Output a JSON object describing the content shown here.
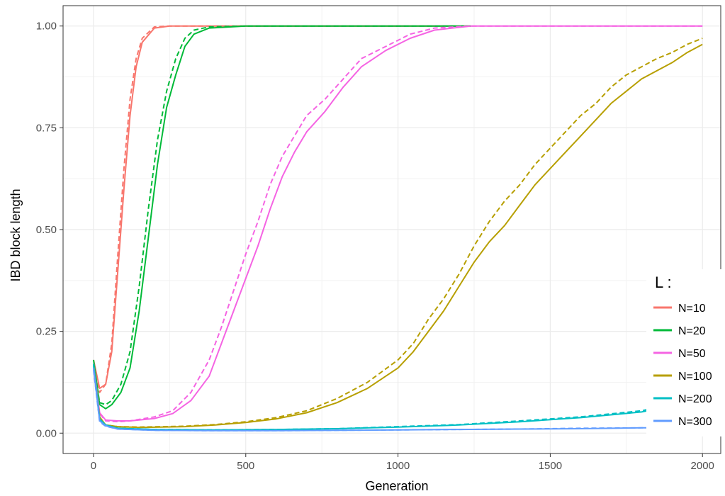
{
  "chart_data": {
    "type": "line",
    "xlabel": "Generation",
    "ylabel": "IBD block length",
    "xlim": [
      -100,
      2060
    ],
    "ylim": [
      -0.05,
      1.05
    ],
    "x_ticks": [
      0,
      500,
      1000,
      1500,
      2000
    ],
    "x_tick_labels": [
      "0",
      "500",
      "1000",
      "1500",
      "2000"
    ],
    "y_ticks": [
      0.0,
      0.25,
      0.5,
      0.75,
      1.0
    ],
    "y_tick_labels": [
      "0.00",
      "0.25",
      "0.50",
      "0.75",
      "1.00"
    ],
    "grid": true,
    "legend": {
      "title": "L :",
      "placement": "right",
      "entries": [
        "N=10",
        "N=20",
        "N=50",
        "N=100",
        "N=200",
        "N=300"
      ]
    },
    "line_styles": [
      "solid",
      "dashed"
    ],
    "series": [
      {
        "name": "N=10",
        "color": "#F8766D",
        "solid": [
          [
            0,
            0.18
          ],
          [
            20,
            0.11
          ],
          [
            40,
            0.12
          ],
          [
            60,
            0.2
          ],
          [
            80,
            0.4
          ],
          [
            100,
            0.6
          ],
          [
            120,
            0.78
          ],
          [
            140,
            0.9
          ],
          [
            160,
            0.96
          ],
          [
            200,
            0.995
          ],
          [
            250,
            1.0
          ],
          [
            1240,
            1.0
          ]
        ],
        "dashed": [
          [
            0,
            0.16
          ],
          [
            20,
            0.1
          ],
          [
            40,
            0.12
          ],
          [
            60,
            0.22
          ],
          [
            80,
            0.44
          ],
          [
            100,
            0.65
          ],
          [
            120,
            0.82
          ],
          [
            140,
            0.92
          ],
          [
            160,
            0.97
          ],
          [
            200,
            0.998
          ],
          [
            250,
            1.0
          ],
          [
            1240,
            1.0
          ]
        ]
      },
      {
        "name": "N=20",
        "color": "#00BA38",
        "solid": [
          [
            0,
            0.18
          ],
          [
            20,
            0.07
          ],
          [
            40,
            0.06
          ],
          [
            60,
            0.07
          ],
          [
            90,
            0.1
          ],
          [
            120,
            0.16
          ],
          [
            150,
            0.3
          ],
          [
            180,
            0.48
          ],
          [
            210,
            0.66
          ],
          [
            240,
            0.8
          ],
          [
            270,
            0.88
          ],
          [
            300,
            0.95
          ],
          [
            330,
            0.98
          ],
          [
            380,
            0.995
          ],
          [
            500,
            1.0
          ],
          [
            1240,
            1.0
          ]
        ],
        "dashed": [
          [
            0,
            0.17
          ],
          [
            20,
            0.075
          ],
          [
            40,
            0.07
          ],
          [
            60,
            0.08
          ],
          [
            90,
            0.12
          ],
          [
            120,
            0.2
          ],
          [
            150,
            0.36
          ],
          [
            180,
            0.55
          ],
          [
            210,
            0.72
          ],
          [
            240,
            0.84
          ],
          [
            270,
            0.92
          ],
          [
            300,
            0.97
          ],
          [
            330,
            0.99
          ],
          [
            380,
            0.998
          ],
          [
            500,
            1.0
          ],
          [
            1240,
            1.0
          ]
        ]
      },
      {
        "name": "N=50",
        "color": "#F564E3",
        "solid": [
          [
            0,
            0.17
          ],
          [
            20,
            0.05
          ],
          [
            40,
            0.032
          ],
          [
            80,
            0.03
          ],
          [
            120,
            0.03
          ],
          [
            200,
            0.036
          ],
          [
            260,
            0.048
          ],
          [
            320,
            0.08
          ],
          [
            380,
            0.14
          ],
          [
            420,
            0.22
          ],
          [
            460,
            0.3
          ],
          [
            500,
            0.38
          ],
          [
            540,
            0.46
          ],
          [
            580,
            0.55
          ],
          [
            620,
            0.63
          ],
          [
            660,
            0.69
          ],
          [
            700,
            0.74
          ],
          [
            760,
            0.79
          ],
          [
            820,
            0.85
          ],
          [
            880,
            0.9
          ],
          [
            960,
            0.94
          ],
          [
            1040,
            0.97
          ],
          [
            1120,
            0.99
          ],
          [
            1240,
            1.0
          ],
          [
            2000,
            1.0
          ]
        ],
        "dashed": [
          [
            0,
            0.16
          ],
          [
            20,
            0.048
          ],
          [
            40,
            0.03
          ],
          [
            80,
            0.028
          ],
          [
            120,
            0.03
          ],
          [
            200,
            0.04
          ],
          [
            260,
            0.055
          ],
          [
            320,
            0.1
          ],
          [
            380,
            0.18
          ],
          [
            420,
            0.26
          ],
          [
            460,
            0.35
          ],
          [
            500,
            0.44
          ],
          [
            540,
            0.52
          ],
          [
            580,
            0.61
          ],
          [
            620,
            0.68
          ],
          [
            660,
            0.73
          ],
          [
            700,
            0.78
          ],
          [
            760,
            0.82
          ],
          [
            820,
            0.87
          ],
          [
            880,
            0.92
          ],
          [
            960,
            0.95
          ],
          [
            1040,
            0.98
          ],
          [
            1120,
            0.995
          ],
          [
            1240,
            1.0
          ],
          [
            2000,
            1.0
          ]
        ]
      },
      {
        "name": "N=100",
        "color": "#B79F00",
        "solid": [
          [
            0,
            0.17
          ],
          [
            20,
            0.04
          ],
          [
            40,
            0.02
          ],
          [
            80,
            0.016
          ],
          [
            150,
            0.014
          ],
          [
            300,
            0.016
          ],
          [
            400,
            0.02
          ],
          [
            500,
            0.026
          ],
          [
            600,
            0.035
          ],
          [
            700,
            0.05
          ],
          [
            800,
            0.075
          ],
          [
            900,
            0.11
          ],
          [
            1000,
            0.16
          ],
          [
            1050,
            0.2
          ],
          [
            1100,
            0.25
          ],
          [
            1150,
            0.3
          ],
          [
            1200,
            0.36
          ],
          [
            1250,
            0.42
          ],
          [
            1300,
            0.47
          ],
          [
            1350,
            0.51
          ],
          [
            1400,
            0.56
          ],
          [
            1450,
            0.61
          ],
          [
            1500,
            0.65
          ],
          [
            1550,
            0.69
          ],
          [
            1600,
            0.73
          ],
          [
            1650,
            0.77
          ],
          [
            1700,
            0.81
          ],
          [
            1750,
            0.84
          ],
          [
            1800,
            0.87
          ],
          [
            1850,
            0.89
          ],
          [
            1900,
            0.91
          ],
          [
            1950,
            0.935
          ],
          [
            2000,
            0.955
          ]
        ],
        "dashed": [
          [
            0,
            0.16
          ],
          [
            20,
            0.038
          ],
          [
            40,
            0.02
          ],
          [
            80,
            0.016
          ],
          [
            150,
            0.015
          ],
          [
            300,
            0.017
          ],
          [
            400,
            0.021
          ],
          [
            500,
            0.028
          ],
          [
            600,
            0.038
          ],
          [
            700,
            0.055
          ],
          [
            800,
            0.085
          ],
          [
            900,
            0.125
          ],
          [
            1000,
            0.18
          ],
          [
            1050,
            0.22
          ],
          [
            1100,
            0.28
          ],
          [
            1150,
            0.33
          ],
          [
            1200,
            0.39
          ],
          [
            1250,
            0.46
          ],
          [
            1300,
            0.52
          ],
          [
            1350,
            0.57
          ],
          [
            1400,
            0.61
          ],
          [
            1450,
            0.66
          ],
          [
            1500,
            0.7
          ],
          [
            1550,
            0.74
          ],
          [
            1600,
            0.78
          ],
          [
            1650,
            0.81
          ],
          [
            1700,
            0.85
          ],
          [
            1750,
            0.88
          ],
          [
            1800,
            0.9
          ],
          [
            1850,
            0.92
          ],
          [
            1900,
            0.935
          ],
          [
            1950,
            0.955
          ],
          [
            2000,
            0.97
          ]
        ]
      },
      {
        "name": "N=200",
        "color": "#00BFC4",
        "solid": [
          [
            0,
            0.17
          ],
          [
            20,
            0.035
          ],
          [
            40,
            0.02
          ],
          [
            80,
            0.012
          ],
          [
            200,
            0.009
          ],
          [
            400,
            0.008
          ],
          [
            600,
            0.009
          ],
          [
            800,
            0.011
          ],
          [
            1000,
            0.015
          ],
          [
            1200,
            0.02
          ],
          [
            1400,
            0.028
          ],
          [
            1600,
            0.038
          ],
          [
            1800,
            0.052
          ],
          [
            1820,
            0.055
          ]
        ],
        "dashed": [
          [
            0,
            0.165
          ],
          [
            20,
            0.034
          ],
          [
            40,
            0.02
          ],
          [
            80,
            0.012
          ],
          [
            200,
            0.009
          ],
          [
            400,
            0.008
          ],
          [
            600,
            0.009
          ],
          [
            800,
            0.011
          ],
          [
            1000,
            0.016
          ],
          [
            1200,
            0.021
          ],
          [
            1400,
            0.03
          ],
          [
            1600,
            0.04
          ],
          [
            1800,
            0.055
          ],
          [
            1820,
            0.058
          ]
        ]
      },
      {
        "name": "N=300",
        "color": "#619CFF",
        "solid": [
          [
            0,
            0.16
          ],
          [
            20,
            0.03
          ],
          [
            40,
            0.018
          ],
          [
            80,
            0.01
          ],
          [
            200,
            0.007
          ],
          [
            400,
            0.006
          ],
          [
            600,
            0.006
          ],
          [
            800,
            0.007
          ],
          [
            1000,
            0.008
          ],
          [
            1200,
            0.009
          ],
          [
            1400,
            0.01
          ],
          [
            1600,
            0.011
          ],
          [
            1800,
            0.013
          ],
          [
            1820,
            0.013
          ]
        ],
        "dashed": [
          [
            0,
            0.155
          ],
          [
            20,
            0.028
          ],
          [
            40,
            0.017
          ],
          [
            80,
            0.01
          ],
          [
            200,
            0.007
          ],
          [
            400,
            0.006
          ],
          [
            600,
            0.006
          ],
          [
            800,
            0.007
          ],
          [
            1000,
            0.008
          ],
          [
            1200,
            0.009
          ],
          [
            1400,
            0.01
          ],
          [
            1600,
            0.012
          ],
          [
            1800,
            0.013
          ],
          [
            1820,
            0.013
          ]
        ]
      }
    ]
  }
}
